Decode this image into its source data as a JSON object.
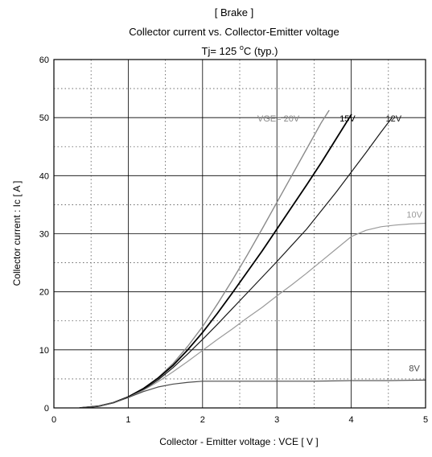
{
  "chart_data": {
    "type": "line",
    "title": "[ Brake ]",
    "subtitle": "Collector current  vs.  Collector-Emitter voltage",
    "condition": {
      "prefix": "Tj= 125 ",
      "superscript": "o",
      "suffix": "C  (typ.)"
    },
    "xlabel": "Collector - Emitter voltage  :  VCE  [ V ]",
    "ylabel": "Collector current  :  Ic  [ A ]",
    "xlim": [
      0,
      5
    ],
    "ylim": [
      0,
      60
    ],
    "x_ticks": [
      "0",
      "1",
      "2",
      "3",
      "4",
      "5"
    ],
    "y_ticks": [
      "0",
      "10",
      "20",
      "30",
      "40",
      "50",
      "60"
    ],
    "grid": {
      "major": "solid",
      "minor": "dotted"
    },
    "legend": "none",
    "series": [
      {
        "name": "VGE= 20V",
        "color": "#8a8a8a",
        "width": 1.4,
        "label_at": [
          3.02,
          49.3
        ],
        "points": [
          [
            0.35,
            0
          ],
          [
            0.6,
            0.3
          ],
          [
            0.8,
            0.9
          ],
          [
            1.0,
            1.9
          ],
          [
            1.2,
            3.3
          ],
          [
            1.4,
            5.2
          ],
          [
            1.6,
            7.6
          ],
          [
            1.8,
            10.6
          ],
          [
            2.0,
            14.0
          ],
          [
            2.2,
            17.9
          ],
          [
            2.4,
            22.0
          ],
          [
            2.6,
            26.3
          ],
          [
            2.8,
            30.8
          ],
          [
            3.0,
            35.4
          ],
          [
            3.2,
            40.0
          ],
          [
            3.4,
            44.6
          ],
          [
            3.6,
            49.2
          ],
          [
            3.7,
            51.2
          ]
        ]
      },
      {
        "name": "15V",
        "color": "#000000",
        "width": 1.8,
        "label_at": [
          3.95,
          49.3
        ],
        "points": [
          [
            0.35,
            0
          ],
          [
            0.6,
            0.3
          ],
          [
            0.8,
            0.9
          ],
          [
            1.0,
            1.9
          ],
          [
            1.2,
            3.3
          ],
          [
            1.4,
            5.1
          ],
          [
            1.6,
            7.3
          ],
          [
            1.8,
            10.0
          ],
          [
            2.0,
            13.0
          ],
          [
            2.2,
            16.3
          ],
          [
            2.4,
            19.8
          ],
          [
            2.6,
            23.4
          ],
          [
            2.8,
            27.0
          ],
          [
            3.0,
            30.8
          ],
          [
            3.2,
            34.6
          ],
          [
            3.4,
            38.4
          ],
          [
            3.6,
            42.3
          ],
          [
            3.8,
            46.4
          ],
          [
            4.0,
            50.5
          ]
        ]
      },
      {
        "name": "12V",
        "color": "#1a1a1a",
        "width": 1.2,
        "label_at": [
          4.57,
          49.3
        ],
        "points": [
          [
            0.35,
            0
          ],
          [
            0.6,
            0.3
          ],
          [
            0.8,
            0.9
          ],
          [
            1.0,
            1.8
          ],
          [
            1.2,
            3.1
          ],
          [
            1.4,
            4.8
          ],
          [
            1.6,
            6.9
          ],
          [
            1.8,
            9.3
          ],
          [
            2.0,
            11.8
          ],
          [
            2.2,
            14.4
          ],
          [
            2.4,
            17.1
          ],
          [
            2.6,
            19.8
          ],
          [
            2.8,
            22.5
          ],
          [
            3.0,
            25.2
          ],
          [
            3.2,
            28.0
          ],
          [
            3.4,
            30.8
          ],
          [
            3.6,
            34.0
          ],
          [
            3.8,
            37.2
          ],
          [
            4.0,
            40.6
          ],
          [
            4.2,
            44.0
          ],
          [
            4.4,
            47.5
          ],
          [
            4.55,
            50.0
          ]
        ]
      },
      {
        "name": "10V",
        "color": "#9a9a9a",
        "width": 1.2,
        "label_at": [
          4.85,
          32.8
        ],
        "points": [
          [
            0.35,
            0
          ],
          [
            0.6,
            0.3
          ],
          [
            0.8,
            0.9
          ],
          [
            1.0,
            1.8
          ],
          [
            1.2,
            3.0
          ],
          [
            1.4,
            4.5
          ],
          [
            1.6,
            6.2
          ],
          [
            1.8,
            8.0
          ],
          [
            2.0,
            9.9
          ],
          [
            2.2,
            11.8
          ],
          [
            2.4,
            13.6
          ],
          [
            2.6,
            15.5
          ],
          [
            2.8,
            17.3
          ],
          [
            3.0,
            19.3
          ],
          [
            3.2,
            21.2
          ],
          [
            3.4,
            23.2
          ],
          [
            3.6,
            25.3
          ],
          [
            3.8,
            27.4
          ],
          [
            4.0,
            29.5
          ],
          [
            4.2,
            30.6
          ],
          [
            4.4,
            31.2
          ],
          [
            4.6,
            31.5
          ],
          [
            4.8,
            31.7
          ],
          [
            5.0,
            31.8
          ]
        ]
      },
      {
        "name": "8V",
        "color": "#4a4a4a",
        "width": 1.2,
        "label_at": [
          4.85,
          6.3
        ],
        "points": [
          [
            0.35,
            0
          ],
          [
            0.6,
            0.3
          ],
          [
            0.8,
            0.9
          ],
          [
            1.0,
            1.8
          ],
          [
            1.2,
            2.8
          ],
          [
            1.4,
            3.6
          ],
          [
            1.6,
            4.1
          ],
          [
            1.8,
            4.4
          ],
          [
            2.0,
            4.6
          ],
          [
            2.5,
            4.6
          ],
          [
            3.0,
            4.6
          ],
          [
            3.5,
            4.6
          ],
          [
            4.0,
            4.7
          ],
          [
            4.5,
            4.7
          ],
          [
            5.0,
            4.8
          ]
        ]
      }
    ]
  }
}
